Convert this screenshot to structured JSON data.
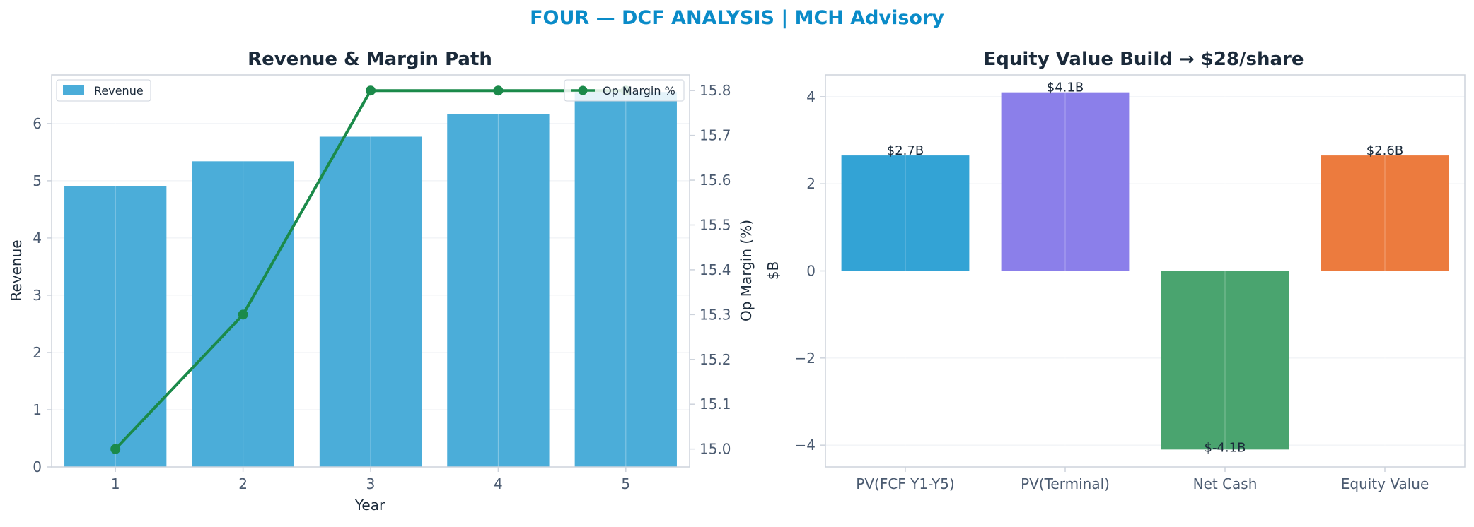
{
  "suptitle": "FOUR — DCF ANALYSIS | MCH Advisory",
  "colors": {
    "title_accent": "#0a8bc8",
    "heading": "#1b2a3a",
    "tick": "#4a5a70",
    "axis": "#cdd3dc",
    "grid": "#eceff3",
    "revenue_bar": "#4badd9",
    "margin_line": "#1b8a4a"
  },
  "chart_data": [
    {
      "type": "bar",
      "title": "Revenue & Margin Path",
      "xlabel": "Year",
      "ylabel": "Revenue",
      "categories": [
        "1",
        "2",
        "3",
        "4",
        "5"
      ],
      "ylim": [
        0,
        6.85
      ],
      "yticks": [
        0,
        1,
        2,
        3,
        4,
        5,
        6
      ],
      "series": [
        {
          "name": "Revenue",
          "type": "bar",
          "values": [
            4.9,
            5.34,
            5.77,
            6.17,
            6.55
          ],
          "color": "#4badd9"
        }
      ],
      "secondary_axis": {
        "label": "Op Margin (%)",
        "ylim": [
          14.96,
          15.835
        ],
        "yticks": [
          "15.0",
          "15.1",
          "15.2",
          "15.3",
          "15.4",
          "15.5",
          "15.6",
          "15.7",
          "15.8"
        ],
        "series": [
          {
            "name": "Op Margin %",
            "type": "line",
            "values": [
              15.0,
              15.3,
              15.8,
              15.8,
              15.8
            ],
            "color": "#1b8a4a",
            "marker": "circle"
          }
        ]
      },
      "legend": [
        {
          "label": "Revenue",
          "placement": "top-left"
        },
        {
          "label": "Op Margin %",
          "placement": "top-right"
        }
      ],
      "grid": true
    },
    {
      "type": "bar",
      "title": "Equity Value Build → $28/share",
      "xlabel": "",
      "ylabel": "$B",
      "categories": [
        "PV(FCF Y1-Y5)",
        "PV(Terminal)",
        "Net Cash",
        "Equity Value"
      ],
      "values": [
        2.65,
        4.1,
        -4.1,
        2.65
      ],
      "data_labels": [
        "$2.7B",
        "$4.1B",
        "$-4.1B",
        "$2.6B"
      ],
      "bar_colors": [
        "#33a3d5",
        "#8b7fea",
        "#4aa46f",
        "#ec7b3e"
      ],
      "ylim": [
        -4.5,
        4.5
      ],
      "yticks": [
        "4",
        "2",
        "0",
        "−2",
        "−4"
      ],
      "ytick_values": [
        4,
        2,
        0,
        -2,
        -4
      ],
      "grid": true
    }
  ]
}
